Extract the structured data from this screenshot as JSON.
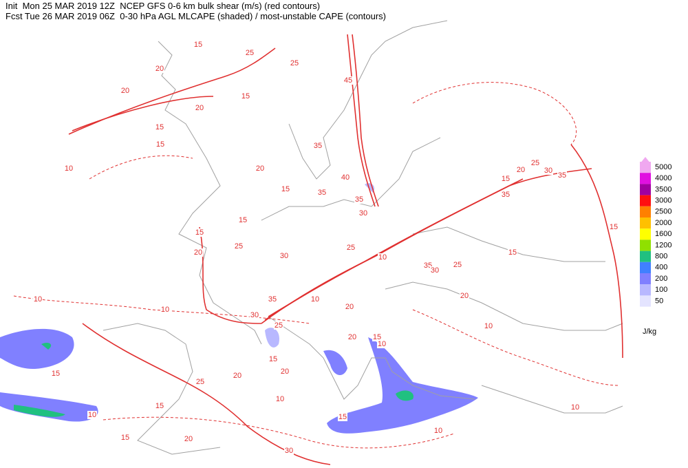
{
  "header": {
    "line1": "Init  Mon 25 MAR 2019 12Z  NCEP GFS 0-6 km bulk shear (m/s) (red contours)",
    "line2": "Fcst Tue 26 MAR 2019 06Z  0-30 hPa AGL MLCAPE (shaded) / most-unstable CAPE (contours)"
  },
  "legend": {
    "unit": "J/kg",
    "items": [
      {
        "label": 5000,
        "color": "#f0a8f0"
      },
      {
        "label": 4000,
        "color": "#e010e0"
      },
      {
        "label": 3500,
        "color": "#a000a0"
      },
      {
        "label": 3000,
        "color": "#ff1010"
      },
      {
        "label": 2500,
        "color": "#ff8000"
      },
      {
        "label": 2000,
        "color": "#ffc000"
      },
      {
        "label": 1600,
        "color": "#ffff00"
      },
      {
        "label": 1200,
        "color": "#90e000"
      },
      {
        "label": 800,
        "color": "#20c080"
      },
      {
        "label": 400,
        "color": "#4080ff"
      },
      {
        "label": 200,
        "color": "#8080ff"
      },
      {
        "label": 100,
        "color": "#b8b8ff"
      },
      {
        "label": 50,
        "color": "#e4e4ff"
      }
    ]
  },
  "contour_labels": [
    15,
    25,
    20,
    25,
    20,
    15,
    45,
    20,
    15,
    15,
    35,
    20,
    10,
    40,
    15,
    35,
    35,
    30,
    20,
    25,
    30,
    35,
    15,
    35,
    15,
    25,
    15,
    20,
    30,
    25,
    10,
    35,
    30,
    25,
    15,
    15,
    20,
    10,
    10,
    30,
    25,
    35,
    10,
    20,
    20,
    15,
    10,
    15,
    15,
    20,
    20,
    25,
    10,
    15,
    10,
    15,
    10,
    10,
    15,
    20,
    30,
    10
  ]
}
